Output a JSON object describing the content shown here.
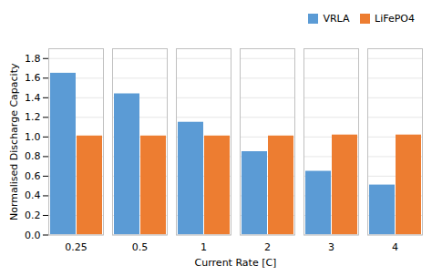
{
  "chart_data": {
    "type": "bar",
    "categories": [
      "0.25",
      "0.5",
      "1",
      "2",
      "3",
      "4"
    ],
    "series": [
      {
        "name": "VRLA",
        "color": "#5b9bd5",
        "values": [
          1.65,
          1.44,
          1.15,
          0.85,
          0.65,
          0.51
        ]
      },
      {
        "name": "LiFePO4",
        "color": "#ed7d31",
        "values": [
          1.01,
          1.01,
          1.01,
          1.01,
          1.02,
          1.02
        ]
      }
    ],
    "xlabel": "Current Rate [C]",
    "ylabel": "Normalised Discharge Capacity",
    "ylim": [
      0,
      1.9
    ],
    "yticks": [
      {
        "value": 0,
        "label": "0.0"
      },
      0.2,
      0.4,
      0.6,
      0.8,
      {
        "value": 1.0,
        "label": "1.0"
      },
      1.2,
      1.4,
      1.6,
      1.8
    ],
    "grid": true,
    "legend": "upper right"
  }
}
